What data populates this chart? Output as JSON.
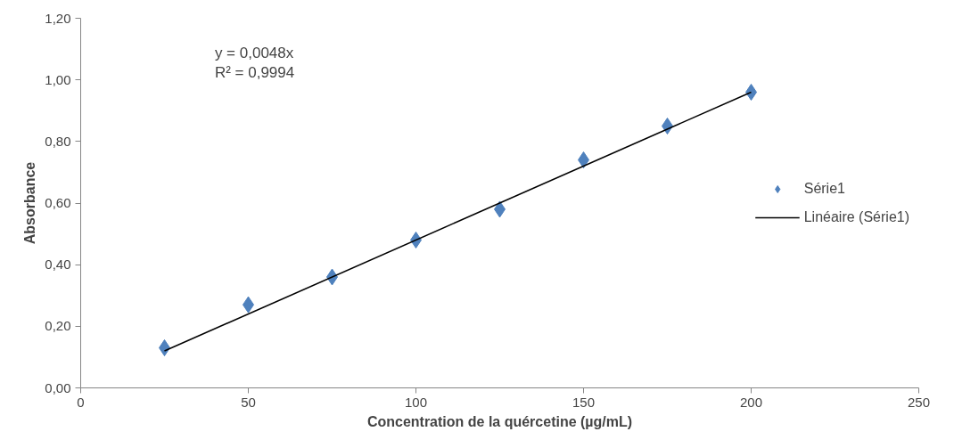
{
  "chart_data": {
    "type": "scatter",
    "xlabel": "Concentration de la quércetine (µg/mL)",
    "ylabel": "Absorbance",
    "x": [
      25,
      50,
      75,
      100,
      125,
      150,
      175,
      200
    ],
    "series": [
      {
        "name": "Série1",
        "color": "#4f81bd",
        "marker": "diamond",
        "values": [
          0.13,
          0.27,
          0.36,
          0.48,
          0.58,
          0.74,
          0.85,
          0.96
        ]
      },
      {
        "name": "Linéaire (Série1)",
        "type": "line",
        "color": "#000000",
        "marker": "none",
        "line_style": "solid",
        "x": [
          25,
          200
        ],
        "values": [
          0.12,
          0.96
        ]
      }
    ],
    "annotations": [
      "y = 0,0048x",
      "R² = 0,9994"
    ],
    "xlim": [
      0,
      250
    ],
    "xticks": [
      0,
      50,
      100,
      150,
      200,
      250
    ],
    "ylim": [
      0,
      1.2
    ],
    "yticks": [
      {
        "value": 0,
        "label": "0,00"
      },
      {
        "value": 0.2,
        "label": "0,20"
      },
      {
        "value": 0.4,
        "label": "0,40"
      },
      {
        "value": 0.6,
        "label": "0,60"
      },
      {
        "value": 0.8,
        "label": "0,80"
      },
      {
        "value": 1.0,
        "label": "1,00"
      },
      {
        "value": 1.2,
        "label": "1,20"
      }
    ],
    "grid": false,
    "legend": "right"
  }
}
